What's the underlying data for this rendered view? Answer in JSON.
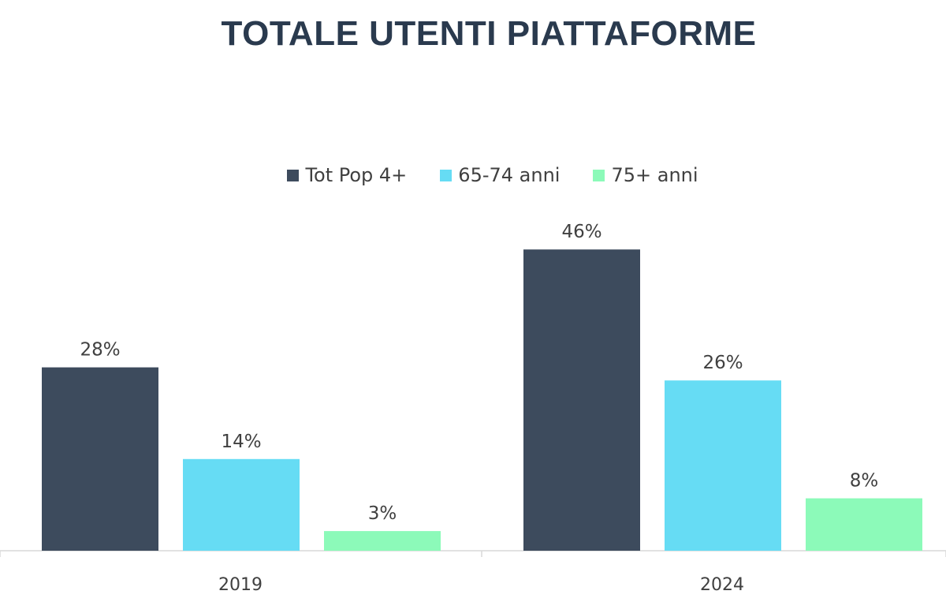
{
  "chart_data": {
    "type": "bar",
    "title": "TOTALE UTENTI PIATTAFORME",
    "categories": [
      "2019",
      "2024"
    ],
    "series": [
      {
        "name": "Tot Pop 4+",
        "values": [
          28,
          46
        ],
        "labels": [
          "28%",
          "46%"
        ],
        "color": "#3d4b5d"
      },
      {
        "name": "65-74 anni",
        "values": [
          14,
          26
        ],
        "labels": [
          "14%",
          "26%"
        ],
        "color": "#66dcf4"
      },
      {
        "name": "75+ anni",
        "values": [
          3,
          8
        ],
        "labels": [
          "3%",
          "8%"
        ],
        "color": "#8cfab9"
      }
    ],
    "ylim": [
      0,
      50
    ],
    "grid": false,
    "legend_position": "top"
  }
}
